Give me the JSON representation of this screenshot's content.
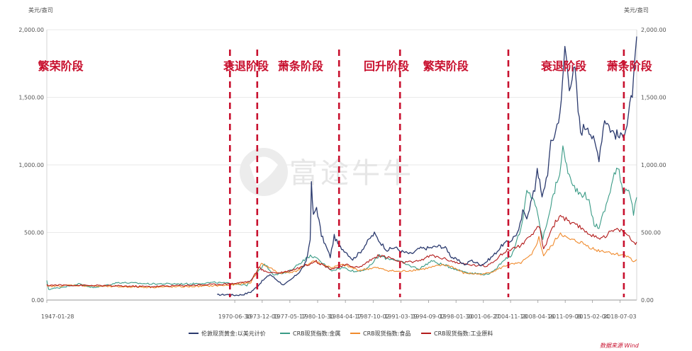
{
  "chart_data": {
    "type": "line",
    "unit_left": "美元/盎司",
    "unit_right": "美元/盎司",
    "ylim": [
      0,
      2000
    ],
    "y_ticks": [
      {
        "value": 0,
        "label": "0.00"
      },
      {
        "value": 500,
        "label": "500.00"
      },
      {
        "value": 1000,
        "label": "1,000.00"
      },
      {
        "value": 1500,
        "label": "1,500.00"
      },
      {
        "value": 2000,
        "label": "2,000.00"
      }
    ],
    "x_range": [
      1947.07,
      2020.6
    ],
    "x_ticks": [
      {
        "year": 1947.07,
        "label": "1947-01-28"
      },
      {
        "year": 1970.5,
        "label": "1970-06-30"
      },
      {
        "year": 1973.92,
        "label": "1973-12-03"
      },
      {
        "year": 1977.37,
        "label": "1977-05-17"
      },
      {
        "year": 1980.83,
        "label": "1980-10-30"
      },
      {
        "year": 1984.29,
        "label": "1984-04-17"
      },
      {
        "year": 1987.75,
        "label": "1987-10-02"
      },
      {
        "year": 1991.21,
        "label": "1991-03-19"
      },
      {
        "year": 1994.67,
        "label": "1994-09-02"
      },
      {
        "year": 1998.08,
        "label": "1998-01-30"
      },
      {
        "year": 2001.49,
        "label": "2001-06-27"
      },
      {
        "year": 2004.88,
        "label": "2004-11-18"
      },
      {
        "year": 2008.29,
        "label": "2008-04-16"
      },
      {
        "year": 2011.69,
        "label": "2011-09-08"
      },
      {
        "year": 2015.09,
        "label": "2015-02-04"
      },
      {
        "year": 2018.51,
        "label": "2018-07-03"
      }
    ],
    "phases": [
      {
        "label": "繁荣阶段",
        "year": 1948.8
      },
      {
        "label": "衰退阶段",
        "year": 1971.9
      },
      {
        "label": "萧条阶段",
        "year": 1978.7
      },
      {
        "label": "回升阶段",
        "year": 1989.4
      },
      {
        "label": "繁荣阶段",
        "year": 1996.8
      },
      {
        "label": "衰退阶段",
        "year": 2011.5
      },
      {
        "label": "萧条阶段",
        "year": 2019.7
      }
    ],
    "dividers": [
      1969.9,
      1973.3,
      1983.5,
      1991.1,
      2004.6,
      2019.0
    ],
    "series": [
      {
        "name": "伦敦现货黄金:以美元计价",
        "color": "#2b3a6e",
        "points": [
          [
            1968.3,
            38
          ],
          [
            1969.5,
            41
          ],
          [
            1970.5,
            36
          ],
          [
            1971.5,
            40
          ],
          [
            1972.5,
            60
          ],
          [
            1973.3,
            100
          ],
          [
            1973.9,
            140
          ],
          [
            1974.9,
            190
          ],
          [
            1975.5,
            160
          ],
          [
            1976.6,
            110
          ],
          [
            1977.5,
            150
          ],
          [
            1978.6,
            210
          ],
          [
            1979.4,
            280
          ],
          [
            1979.9,
            450
          ],
          [
            1980.05,
            850
          ],
          [
            1980.3,
            620
          ],
          [
            1980.7,
            690
          ],
          [
            1981.3,
            480
          ],
          [
            1982.4,
            320
          ],
          [
            1982.9,
            470
          ],
          [
            1983.5,
            400
          ],
          [
            1984.3,
            360
          ],
          [
            1985.2,
            300
          ],
          [
            1986.2,
            360
          ],
          [
            1987.4,
            460
          ],
          [
            1987.9,
            490
          ],
          [
            1988.6,
            430
          ],
          [
            1989.5,
            370
          ],
          [
            1990.5,
            390
          ],
          [
            1991.2,
            360
          ],
          [
            1992.5,
            340
          ],
          [
            1993.5,
            380
          ],
          [
            1994.7,
            385
          ],
          [
            1996.1,
            400
          ],
          [
            1996.9,
            380
          ],
          [
            1997.5,
            320
          ],
          [
            1998.1,
            300
          ],
          [
            1999.3,
            260
          ],
          [
            1999.9,
            295
          ],
          [
            2001.2,
            260
          ],
          [
            2001.8,
            280
          ],
          [
            2002.9,
            340
          ],
          [
            2003.9,
            410
          ],
          [
            2004.9,
            440
          ],
          [
            2005.9,
            510
          ],
          [
            2006.4,
            650
          ],
          [
            2006.9,
            620
          ],
          [
            2007.9,
            820
          ],
          [
            2008.2,
            990
          ],
          [
            2008.8,
            750
          ],
          [
            2009.5,
            950
          ],
          [
            2009.9,
            1150
          ],
          [
            2010.5,
            1250
          ],
          [
            2011.2,
            1450
          ],
          [
            2011.65,
            1880
          ],
          [
            2012.2,
            1600
          ],
          [
            2012.9,
            1700
          ],
          [
            2013.3,
            1400
          ],
          [
            2013.6,
            1250
          ],
          [
            2014.5,
            1300
          ],
          [
            2015.9,
            1060
          ],
          [
            2016.6,
            1350
          ],
          [
            2017.5,
            1250
          ],
          [
            2018.6,
            1200
          ],
          [
            2019.4,
            1300
          ],
          [
            2019.9,
            1480
          ],
          [
            2020.2,
            1600
          ],
          [
            2020.6,
            1950
          ]
        ]
      },
      {
        "name": "CRB现货指数:金属",
        "color": "#3a9b86",
        "points": [
          [
            1947.07,
            140
          ],
          [
            1947.3,
            80
          ],
          [
            1948.5,
            90
          ],
          [
            1951.0,
            120
          ],
          [
            1953.0,
            90
          ],
          [
            1956.0,
            130
          ],
          [
            1960.0,
            120
          ],
          [
            1965.0,
            120
          ],
          [
            1968.0,
            130
          ],
          [
            1970.5,
            120
          ],
          [
            1972.0,
            110
          ],
          [
            1973.3,
            200
          ],
          [
            1974.2,
            270
          ],
          [
            1975.3,
            190
          ],
          [
            1977.0,
            200
          ],
          [
            1979.2,
            300
          ],
          [
            1980.1,
            330
          ],
          [
            1981.5,
            270
          ],
          [
            1982.6,
            220
          ],
          [
            1984.0,
            240
          ],
          [
            1985.5,
            210
          ],
          [
            1987.0,
            230
          ],
          [
            1988.5,
            330
          ],
          [
            1989.3,
            310
          ],
          [
            1990.5,
            300
          ],
          [
            1992.0,
            260
          ],
          [
            1993.5,
            230
          ],
          [
            1995.0,
            290
          ],
          [
            1996.5,
            260
          ],
          [
            1998.5,
            220
          ],
          [
            1999.8,
            200
          ],
          [
            2001.8,
            190
          ],
          [
            2002.8,
            210
          ],
          [
            2004.0,
            300
          ],
          [
            2005.0,
            330
          ],
          [
            2006.3,
            550
          ],
          [
            2006.9,
            800
          ],
          [
            2007.8,
            750
          ],
          [
            2008.9,
            450
          ],
          [
            2009.9,
            700
          ],
          [
            2011.0,
            950
          ],
          [
            2011.4,
            1110
          ],
          [
            2012.5,
            850
          ],
          [
            2013.5,
            800
          ],
          [
            2014.5,
            760
          ],
          [
            2015.3,
            560
          ],
          [
            2015.9,
            540
          ],
          [
            2016.8,
            700
          ],
          [
            2017.8,
            930
          ],
          [
            2018.4,
            970
          ],
          [
            2018.9,
            800
          ],
          [
            2019.6,
            840
          ],
          [
            2020.2,
            640
          ],
          [
            2020.6,
            760
          ]
        ]
      },
      {
        "name": "CRB现货指数:食品",
        "color": "#f08a2c",
        "points": [
          [
            1947.07,
            100
          ],
          [
            1950.0,
            110
          ],
          [
            1955.0,
            100
          ],
          [
            1960.0,
            95
          ],
          [
            1965.0,
            100
          ],
          [
            1970.0,
            110
          ],
          [
            1972.5,
            130
          ],
          [
            1973.8,
            270
          ],
          [
            1974.8,
            240
          ],
          [
            1976.0,
            200
          ],
          [
            1978.0,
            210
          ],
          [
            1980.3,
            290
          ],
          [
            1982.5,
            240
          ],
          [
            1984.0,
            260
          ],
          [
            1986.0,
            220
          ],
          [
            1988.0,
            240
          ],
          [
            1989.5,
            220
          ],
          [
            1991.0,
            210
          ],
          [
            1994.0,
            230
          ],
          [
            1996.5,
            260
          ],
          [
            1997.5,
            250
          ],
          [
            1999.0,
            200
          ],
          [
            2001.5,
            190
          ],
          [
            2003.0,
            220
          ],
          [
            2004.5,
            260
          ],
          [
            2006.0,
            270
          ],
          [
            2007.5,
            330
          ],
          [
            2008.4,
            460
          ],
          [
            2009.0,
            330
          ],
          [
            2010.0,
            400
          ],
          [
            2011.1,
            500
          ],
          [
            2012.0,
            450
          ],
          [
            2013.5,
            430
          ],
          [
            2014.5,
            400
          ],
          [
            2015.5,
            370
          ],
          [
            2016.8,
            360
          ],
          [
            2018.0,
            340
          ],
          [
            2019.5,
            330
          ],
          [
            2020.2,
            280
          ],
          [
            2020.6,
            300
          ]
        ]
      },
      {
        "name": "CRB现货指数:工业原料",
        "color": "#b31b1b",
        "points": [
          [
            1947.07,
            110
          ],
          [
            1950.0,
            110
          ],
          [
            1955.0,
            105
          ],
          [
            1960.0,
            100
          ],
          [
            1965.0,
            110
          ],
          [
            1970.0,
            120
          ],
          [
            1972.5,
            140
          ],
          [
            1973.5,
            240
          ],
          [
            1974.3,
            210
          ],
          [
            1976.0,
            200
          ],
          [
            1977.5,
            220
          ],
          [
            1979.5,
            260
          ],
          [
            1980.5,
            290
          ],
          [
            1982.5,
            230
          ],
          [
            1984.5,
            260
          ],
          [
            1986.0,
            240
          ],
          [
            1987.5,
            300
          ],
          [
            1988.5,
            330
          ],
          [
            1990.0,
            310
          ],
          [
            1991.0,
            280
          ],
          [
            1993.0,
            280
          ],
          [
            1995.0,
            330
          ],
          [
            1997.0,
            300
          ],
          [
            1998.5,
            270
          ],
          [
            2000.0,
            260
          ],
          [
            2001.8,
            250
          ],
          [
            2003.0,
            300
          ],
          [
            2004.5,
            370
          ],
          [
            2006.0,
            400
          ],
          [
            2007.5,
            470
          ],
          [
            2008.4,
            560
          ],
          [
            2009.0,
            370
          ],
          [
            2010.0,
            530
          ],
          [
            2011.1,
            630
          ],
          [
            2012.5,
            560
          ],
          [
            2013.5,
            540
          ],
          [
            2014.5,
            500
          ],
          [
            2015.5,
            460
          ],
          [
            2016.5,
            470
          ],
          [
            2017.5,
            510
          ],
          [
            2018.5,
            520
          ],
          [
            2019.5,
            480
          ],
          [
            2020.3,
            420
          ],
          [
            2020.6,
            430
          ]
        ]
      }
    ],
    "watermark": "富途牛牛",
    "source": "数据来源 Wind"
  }
}
